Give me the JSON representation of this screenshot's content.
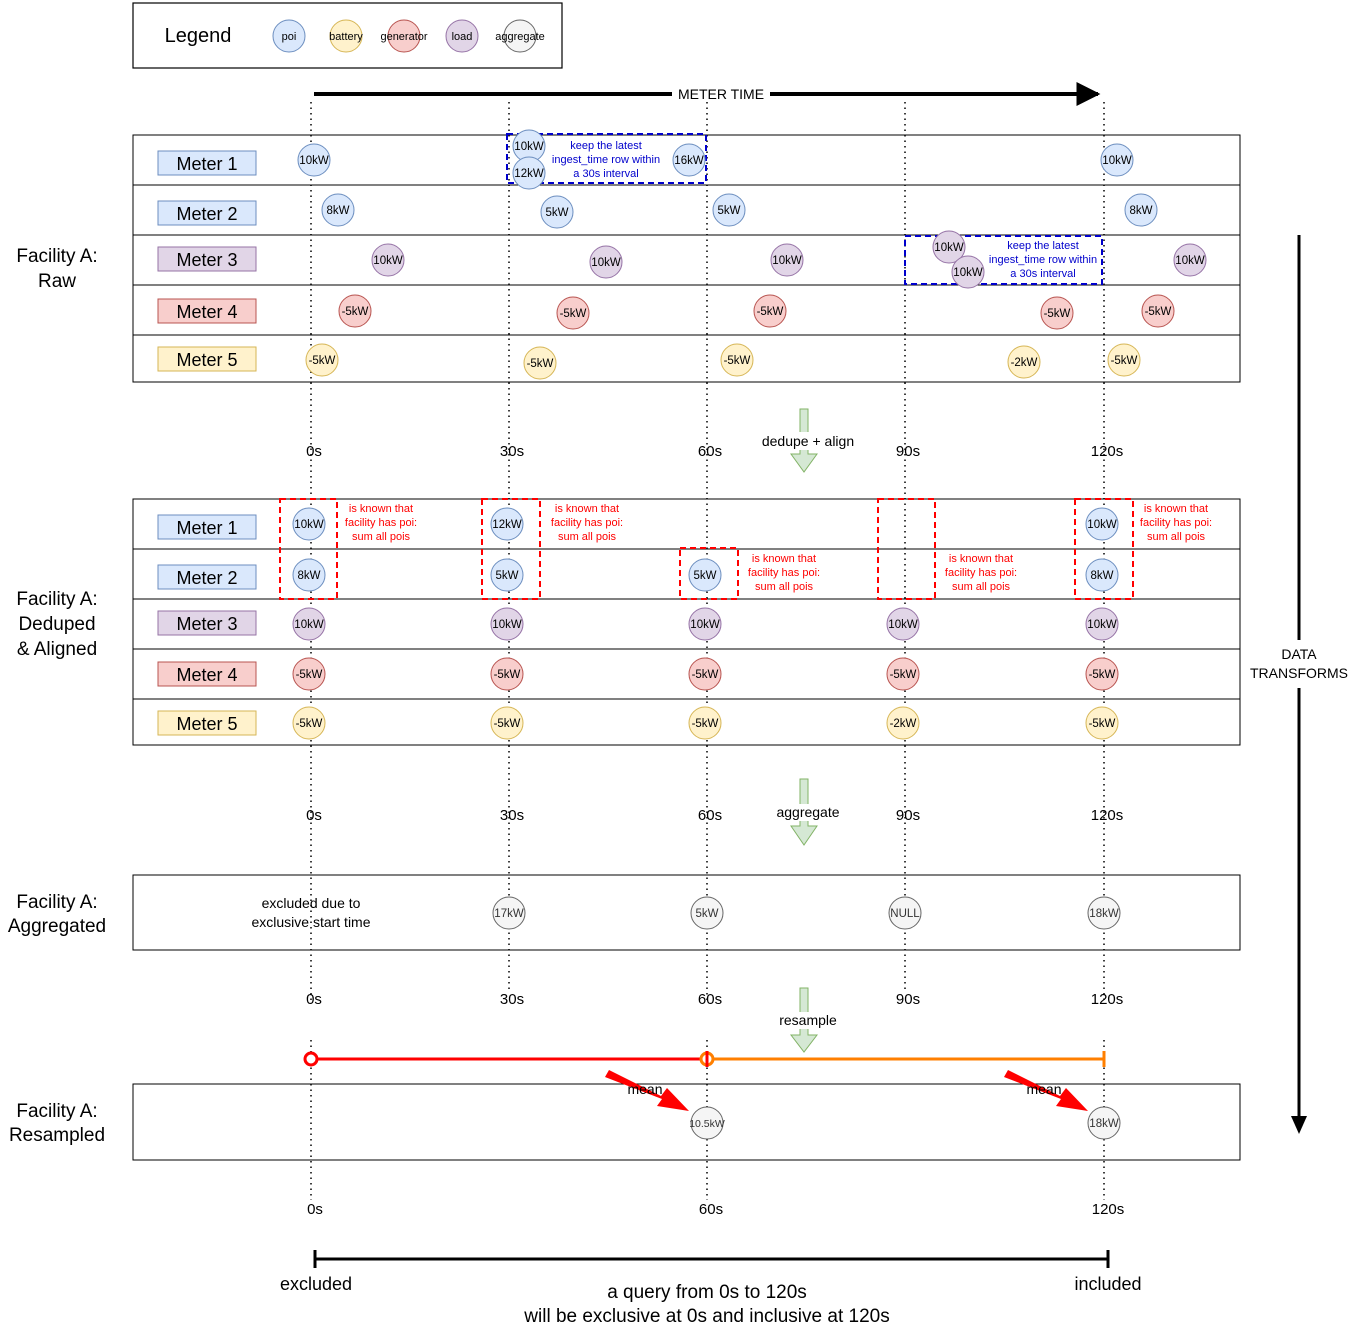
{
  "legend": {
    "title": "Legend",
    "items": [
      {
        "label": "poi",
        "type": "poi"
      },
      {
        "label": "battery",
        "type": "battery"
      },
      {
        "label": "generator",
        "type": "generator"
      },
      {
        "label": "load",
        "type": "load"
      },
      {
        "label": "aggregate",
        "type": "aggregate"
      }
    ]
  },
  "colors": {
    "poi": {
      "fill": "#dae8fc",
      "stroke": "#6c8ebf"
    },
    "battery": {
      "fill": "#fff2cc",
      "stroke": "#d6b656"
    },
    "generator": {
      "fill": "#f8cecc",
      "stroke": "#b85450"
    },
    "load": {
      "fill": "#e1d5e7",
      "stroke": "#9673a6"
    },
    "aggregate": {
      "fill": "#f5f5f5",
      "stroke": "#666666"
    },
    "dedupe_box": "#0000cc",
    "poi_box": "#ff0000",
    "interval_red": "#ff0000",
    "interval_orange": "#ff7f00",
    "transform_arrow_fill": "#d5e8d4",
    "transform_arrow_stroke": "#82b366"
  },
  "meter_time_label": "METER TIME",
  "data_transforms_label": [
    "DATA",
    "TRANSFORMS"
  ],
  "meters": [
    {
      "label": "Meter 1",
      "type": "poi"
    },
    {
      "label": "Meter 2",
      "type": "poi"
    },
    {
      "label": "Meter 3",
      "type": "load"
    },
    {
      "label": "Meter 4",
      "type": "generator"
    },
    {
      "label": "Meter 5",
      "type": "battery"
    }
  ],
  "time_labels": [
    "0s",
    "30s",
    "60s",
    "90s",
    "120s"
  ],
  "sections": {
    "raw": {
      "title": [
        "Facility A:",
        "Raw"
      ],
      "readings": [
        [
          "10kW",
          "10kW",
          "12kW",
          "16kW",
          "10kW"
        ],
        [
          "8kW",
          "5kW",
          "5kW",
          "8kW"
        ],
        [
          "10kW",
          "10kW",
          "10kW",
          "10kW",
          "10kW",
          "10kW"
        ],
        [
          "-5kW",
          "-5kW",
          "-5kW",
          "-5kW",
          "-5kW"
        ],
        [
          "-5kW",
          "-5kW",
          "-5kW",
          "-2kW",
          "-5kW"
        ]
      ],
      "dedupe_note": [
        "keep the latest",
        "ingest_time row within",
        "a 30s interval"
      ]
    },
    "deduped": {
      "title": [
        "Facility A:",
        "Deduped",
        "& Aligned"
      ],
      "readings": [
        [
          "10kW",
          "12kW",
          "",
          "",
          "10kW"
        ],
        [
          "8kW",
          "5kW",
          "5kW",
          "",
          "8kW"
        ],
        [
          "10kW",
          "10kW",
          "10kW",
          "10kW",
          "10kW"
        ],
        [
          "-5kW",
          "-5kW",
          "-5kW",
          "-5kW",
          "-5kW"
        ],
        [
          "-5kW",
          "-5kW",
          "-5kW",
          "-2kW",
          "-5kW"
        ]
      ],
      "poi_note": [
        "is known that",
        "facility has poi:",
        "sum all pois"
      ]
    },
    "aggregated": {
      "title": [
        "Facility A:",
        "Aggregated"
      ],
      "excluded_note": [
        "excluded due to",
        "exclusive start time"
      ],
      "values": [
        "17kW",
        "5kW",
        "NULL",
        "18kW"
      ]
    },
    "resampled": {
      "title": [
        "Facility A:",
        "Resampled"
      ],
      "values": [
        "10.5kW",
        "18kW"
      ],
      "mean_label": "mean",
      "time_labels": [
        "0s",
        "60s",
        "120s"
      ]
    }
  },
  "transforms": [
    "dedupe + align",
    "aggregate",
    "resample"
  ],
  "query_range": {
    "left_label": "excluded",
    "right_label": "included",
    "description": [
      "a query from 0s to 120s",
      "will be exclusive at 0s and inclusive at 120s"
    ]
  }
}
